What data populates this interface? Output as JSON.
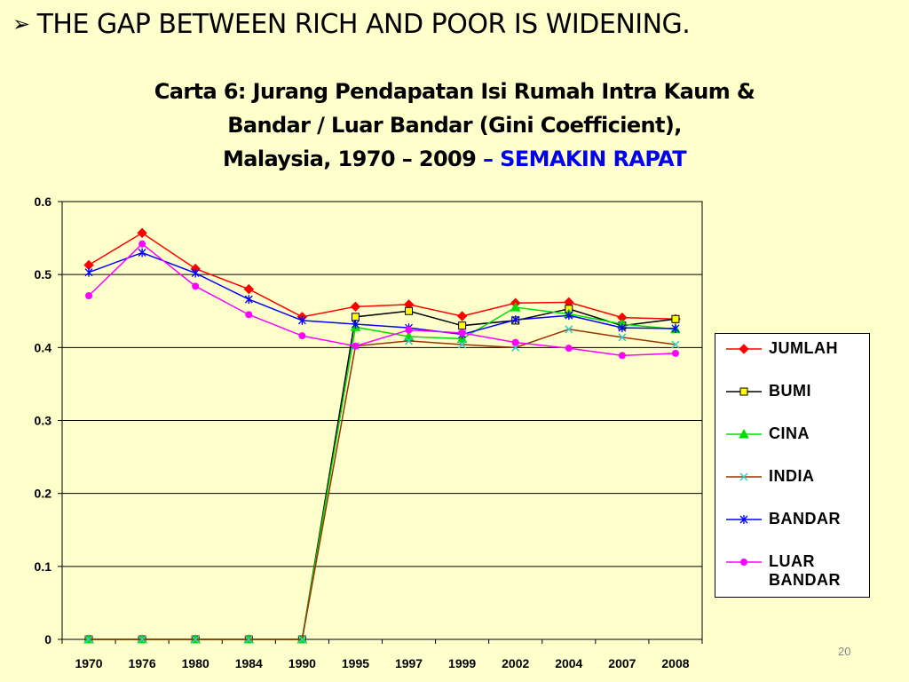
{
  "headline": {
    "bullet": "➢",
    "text": "THE GAP BETWEEN RICH AND POOR IS WIDENING."
  },
  "title": {
    "line1": "Carta 6: Jurang Pendapatan Isi Rumah Intra Kaum &",
    "line2": "Bandar / Luar Bandar (Gini Coefficient),",
    "line3_main": "Malaysia, 1970 – 2009",
    "line3_accent": "– SEMAKIN RAPAT",
    "accent_color": "#0000EE"
  },
  "page_number": "20",
  "chart_data": {
    "type": "line",
    "categories": [
      "1970",
      "1976",
      "1980",
      "1984",
      "1990",
      "1995",
      "1997",
      "1999",
      "2002",
      "2004",
      "2007",
      "2008"
    ],
    "ylim": [
      0,
      0.6
    ],
    "yticks": [
      "0",
      "0.1",
      "0.2",
      "0.3",
      "0.4",
      "0.5",
      "0.6"
    ],
    "grid": true,
    "legend_position": "right",
    "series": [
      {
        "name": "JUMLAH",
        "color": "#FF0000",
        "marker": "diamond",
        "marker_color": "#FF0000",
        "values": [
          0.513,
          0.557,
          0.508,
          0.48,
          0.442,
          0.456,
          0.459,
          0.443,
          0.461,
          0.462,
          0.441,
          0.439
        ]
      },
      {
        "name": "BUMI",
        "color": "#000000",
        "marker": "square",
        "marker_color": "#FFFF00",
        "values": [
          0,
          0,
          0,
          0,
          0,
          0.442,
          0.45,
          0.43,
          0.437,
          0.453,
          0.43,
          0.439
        ]
      },
      {
        "name": "CINA",
        "color": "#00DD00",
        "marker": "triangle",
        "marker_color": "#00DD00",
        "values": [
          0,
          0,
          0,
          0,
          0,
          0.428,
          0.415,
          0.412,
          0.455,
          0.446,
          0.432,
          0.425
        ]
      },
      {
        "name": "INDIA",
        "color": "#993300",
        "marker": "x",
        "marker_color": "#33CCCC",
        "values": [
          0,
          0,
          0,
          0,
          0,
          0.402,
          0.409,
          0.404,
          0.4,
          0.425,
          0.414,
          0.404
        ]
      },
      {
        "name": "BANDAR",
        "color": "#0000FF",
        "marker": "star",
        "marker_color": "#0000FF",
        "values": [
          0.503,
          0.53,
          0.502,
          0.466,
          0.437,
          0.432,
          0.427,
          0.418,
          0.438,
          0.444,
          0.427,
          0.426
        ]
      },
      {
        "name": "LUAR BANDAR",
        "color": "#FF00FF",
        "marker": "circle",
        "marker_color": "#FF00FF",
        "values": [
          0.471,
          0.542,
          0.484,
          0.445,
          0.416,
          0.402,
          0.424,
          0.42,
          0.407,
          0.399,
          0.389,
          0.392
        ]
      }
    ]
  }
}
